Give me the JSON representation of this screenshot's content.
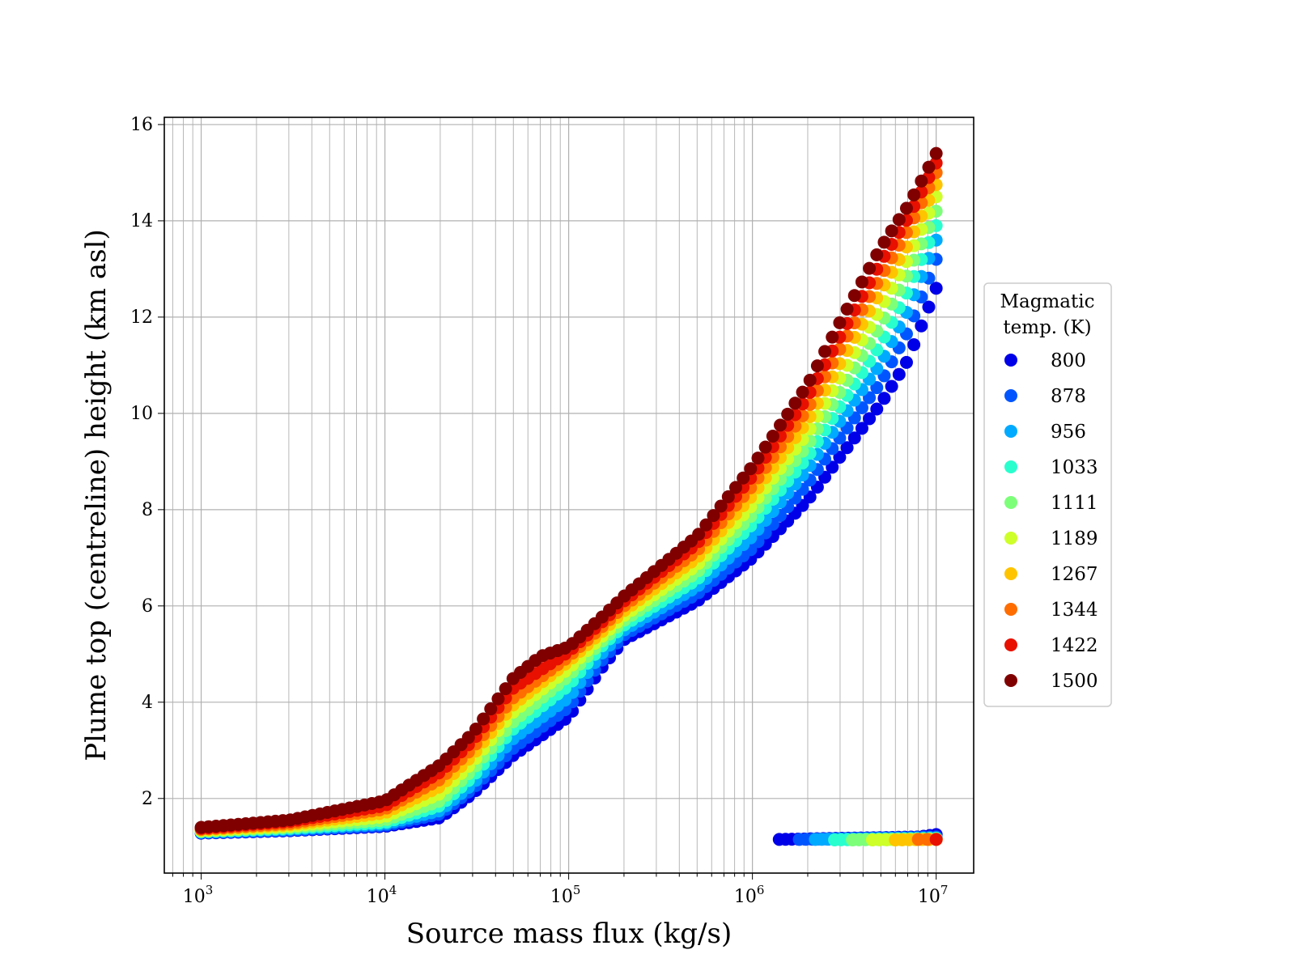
{
  "chart_data": {
    "type": "scatter",
    "xlabel": "Source mass flux (kg/s)",
    "ylabel": "Plume top (centreline) height (km asl)",
    "x_scale": "log",
    "xlim": [
      630,
      16000000
    ],
    "ylim": [
      0.45,
      16.15
    ],
    "x_ticks": [
      {
        "value": 1000,
        "base": "10",
        "exp": "3"
      },
      {
        "value": 10000,
        "base": "10",
        "exp": "4"
      },
      {
        "value": 100000,
        "base": "10",
        "exp": "5"
      },
      {
        "value": 1000000,
        "base": "10",
        "exp": "6"
      },
      {
        "value": 10000000,
        "base": "10",
        "exp": "7"
      }
    ],
    "y_ticks": [
      2,
      4,
      6,
      8,
      10,
      12,
      14,
      16
    ],
    "grid": true,
    "legend": {
      "title_lines": [
        "Magmatic",
        "temp. (K)"
      ],
      "placement": "outside right",
      "entries": [
        {
          "label": "800",
          "color": "#0000e8"
        },
        {
          "label": "878",
          "color": "#0055ff"
        },
        {
          "label": "956",
          "color": "#00aaff"
        },
        {
          "label": "1033",
          "color": "#29ffce"
        },
        {
          "label": "1111",
          "color": "#7dff7a"
        },
        {
          "label": "1189",
          "color": "#ceff29"
        },
        {
          "label": "1267",
          "color": "#ffc400"
        },
        {
          "label": "1344",
          "color": "#ff6d00"
        },
        {
          "label": "1422",
          "color": "#e81000"
        },
        {
          "label": "1500",
          "color": "#800000"
        }
      ]
    },
    "series_style": {
      "marker": "circle",
      "colormap": "jet"
    },
    "series": [
      {
        "name": "800",
        "color": "#0000e8",
        "curve": [
          [
            1000,
            1.28
          ],
          [
            3000,
            1.33
          ],
          [
            10000,
            1.42
          ],
          [
            20000,
            1.6
          ],
          [
            30000,
            2.1
          ],
          [
            50000,
            2.9
          ],
          [
            100000,
            3.7
          ],
          [
            150000,
            4.7
          ],
          [
            200000,
            5.3
          ],
          [
            500000,
            6.1
          ],
          [
            1000000,
            7.0
          ],
          [
            2000000,
            8.2
          ],
          [
            3000000,
            9.1
          ],
          [
            5000000,
            10.2
          ],
          [
            7000000,
            11.1
          ],
          [
            10000000,
            12.6
          ]
        ],
        "branch": [
          [
            1400000,
            1.15
          ],
          [
            8000000,
            1.2
          ],
          [
            10000000,
            1.25
          ]
        ]
      },
      {
        "name": "878",
        "color": "#0055ff",
        "curve": [
          [
            1000,
            1.29
          ],
          [
            3000,
            1.34
          ],
          [
            10000,
            1.44
          ],
          [
            20000,
            1.68
          ],
          [
            30000,
            2.2
          ],
          [
            50000,
            3.05
          ],
          [
            100000,
            3.9
          ],
          [
            150000,
            4.85
          ],
          [
            200000,
            5.4
          ],
          [
            500000,
            6.25
          ],
          [
            1000000,
            7.2
          ],
          [
            2000000,
            8.55
          ],
          [
            3000000,
            9.5
          ],
          [
            5000000,
            10.65
          ],
          [
            7000000,
            11.7
          ],
          [
            10000000,
            13.2
          ]
        ],
        "branch": [
          [
            1800000,
            1.15
          ],
          [
            10000000,
            1.2
          ]
        ]
      },
      {
        "name": "956",
        "color": "#00aaff",
        "curve": [
          [
            1000,
            1.3
          ],
          [
            3000,
            1.36
          ],
          [
            10000,
            1.47
          ],
          [
            20000,
            1.75
          ],
          [
            30000,
            2.3
          ],
          [
            50000,
            3.25
          ],
          [
            100000,
            4.1
          ],
          [
            150000,
            5.0
          ],
          [
            200000,
            5.5
          ],
          [
            500000,
            6.4
          ],
          [
            1000000,
            7.45
          ],
          [
            2000000,
            8.85
          ],
          [
            3000000,
            9.85
          ],
          [
            5000000,
            11.05
          ],
          [
            7000000,
            12.15
          ],
          [
            10000000,
            13.6
          ]
        ],
        "branch": [
          [
            2200000,
            1.15
          ],
          [
            10000000,
            1.18
          ]
        ]
      },
      {
        "name": "1033",
        "color": "#29ffce",
        "curve": [
          [
            1000,
            1.31
          ],
          [
            3000,
            1.38
          ],
          [
            10000,
            1.5
          ],
          [
            20000,
            1.85
          ],
          [
            30000,
            2.45
          ],
          [
            50000,
            3.45
          ],
          [
            100000,
            4.35
          ],
          [
            150000,
            5.15
          ],
          [
            200000,
            5.6
          ],
          [
            500000,
            6.55
          ],
          [
            1000000,
            7.7
          ],
          [
            2000000,
            9.1
          ],
          [
            3000000,
            10.15
          ],
          [
            5000000,
            11.45
          ],
          [
            7000000,
            12.55
          ],
          [
            10000000,
            13.9
          ]
        ],
        "branch": [
          [
            2800000,
            1.14
          ],
          [
            10000000,
            1.17
          ]
        ]
      },
      {
        "name": "1111",
        "color": "#7dff7a",
        "curve": [
          [
            1000,
            1.32
          ],
          [
            3000,
            1.4
          ],
          [
            10000,
            1.55
          ],
          [
            20000,
            1.95
          ],
          [
            30000,
            2.6
          ],
          [
            50000,
            3.6
          ],
          [
            100000,
            4.55
          ],
          [
            150000,
            5.25
          ],
          [
            200000,
            5.7
          ],
          [
            500000,
            6.7
          ],
          [
            1000000,
            7.9
          ],
          [
            2000000,
            9.35
          ],
          [
            3000000,
            10.45
          ],
          [
            5000000,
            11.85
          ],
          [
            7000000,
            12.9
          ],
          [
            10000000,
            14.2
          ]
        ],
        "branch": [
          [
            3500000,
            1.14
          ],
          [
            10000000,
            1.16
          ]
        ]
      },
      {
        "name": "1189",
        "color": "#ceff29",
        "curve": [
          [
            1000,
            1.33
          ],
          [
            3000,
            1.42
          ],
          [
            10000,
            1.62
          ],
          [
            20000,
            2.1
          ],
          [
            30000,
            2.75
          ],
          [
            50000,
            3.8
          ],
          [
            100000,
            4.7
          ],
          [
            150000,
            5.35
          ],
          [
            200000,
            5.8
          ],
          [
            500000,
            6.85
          ],
          [
            1000000,
            8.1
          ],
          [
            2000000,
            9.6
          ],
          [
            3000000,
            10.75
          ],
          [
            5000000,
            12.2
          ],
          [
            7000000,
            13.2
          ],
          [
            10000000,
            14.5
          ]
        ],
        "branch": [
          [
            4500000,
            1.14
          ],
          [
            10000000,
            1.15
          ]
        ]
      },
      {
        "name": "1267",
        "color": "#ffc400",
        "curve": [
          [
            1000,
            1.35
          ],
          [
            3000,
            1.45
          ],
          [
            10000,
            1.7
          ],
          [
            20000,
            2.25
          ],
          [
            30000,
            2.9
          ],
          [
            50000,
            3.95
          ],
          [
            100000,
            4.85
          ],
          [
            150000,
            5.45
          ],
          [
            200000,
            5.9
          ],
          [
            500000,
            7.0
          ],
          [
            1000000,
            8.3
          ],
          [
            2000000,
            9.85
          ],
          [
            3000000,
            11.05
          ],
          [
            5000000,
            12.55
          ],
          [
            7000000,
            13.5
          ],
          [
            10000000,
            14.75
          ]
        ],
        "branch": [
          [
            6000000,
            1.14
          ],
          [
            10000000,
            1.15
          ]
        ]
      },
      {
        "name": "1344",
        "color": "#ff6d00",
        "curve": [
          [
            1000,
            1.36
          ],
          [
            3000,
            1.48
          ],
          [
            10000,
            1.78
          ],
          [
            20000,
            2.4
          ],
          [
            30000,
            3.05
          ],
          [
            50000,
            4.1
          ],
          [
            100000,
            4.95
          ],
          [
            150000,
            5.55
          ],
          [
            200000,
            6.0
          ],
          [
            500000,
            7.15
          ],
          [
            1000000,
            8.5
          ],
          [
            2000000,
            10.1
          ],
          [
            3000000,
            11.35
          ],
          [
            5000000,
            12.85
          ],
          [
            7000000,
            13.8
          ],
          [
            10000000,
            15.0
          ]
        ],
        "branch": [
          [
            8000000,
            1.15
          ],
          [
            10000000,
            1.15
          ]
        ]
      },
      {
        "name": "1422",
        "color": "#e81000",
        "curve": [
          [
            1000,
            1.38
          ],
          [
            3000,
            1.52
          ],
          [
            10000,
            1.85
          ],
          [
            20000,
            2.55
          ],
          [
            30000,
            3.2
          ],
          [
            50000,
            4.3
          ],
          [
            100000,
            5.05
          ],
          [
            150000,
            5.65
          ],
          [
            200000,
            6.1
          ],
          [
            500000,
            7.3
          ],
          [
            1000000,
            8.7
          ],
          [
            2000000,
            10.35
          ],
          [
            3000000,
            11.6
          ],
          [
            5000000,
            13.15
          ],
          [
            7000000,
            14.05
          ],
          [
            10000000,
            15.2
          ]
        ],
        "branch": [
          [
            10000000,
            1.15
          ]
        ]
      },
      {
        "name": "1500",
        "color": "#800000",
        "curve": [
          [
            1000,
            1.4
          ],
          [
            3000,
            1.55
          ],
          [
            10000,
            1.95
          ],
          [
            20000,
            2.7
          ],
          [
            30000,
            3.35
          ],
          [
            50000,
            4.5
          ],
          [
            70000,
            4.95
          ],
          [
            100000,
            5.15
          ],
          [
            150000,
            5.75
          ],
          [
            200000,
            6.2
          ],
          [
            500000,
            7.45
          ],
          [
            1000000,
            8.9
          ],
          [
            2000000,
            10.6
          ],
          [
            3000000,
            11.9
          ],
          [
            5000000,
            13.45
          ],
          [
            7000000,
            14.3
          ],
          [
            10000000,
            15.4
          ]
        ],
        "branch": []
      }
    ]
  }
}
